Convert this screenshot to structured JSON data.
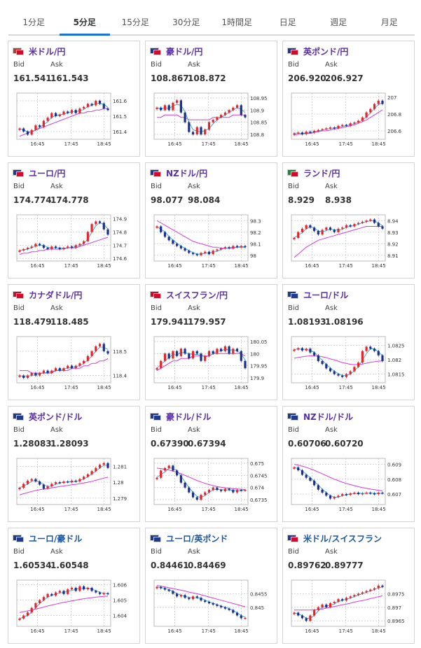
{
  "tabs": [
    {
      "label": "1分足",
      "active": false
    },
    {
      "label": "5分足",
      "active": true
    },
    {
      "label": "15分足",
      "active": false
    },
    {
      "label": "30分足",
      "active": false
    },
    {
      "label": "1時間足",
      "active": false
    },
    {
      "label": "日足",
      "active": false
    },
    {
      "label": "週足",
      "active": false
    },
    {
      "label": "月足",
      "active": false
    }
  ],
  "bid_label": "Bid",
  "ask_label": "Ask",
  "x_ticks": [
    "16:45",
    "17:45",
    "18:45"
  ],
  "colors": {
    "up": "#e8242b",
    "down": "#1b2f8f",
    "ma_short": "#2aa7d8",
    "ma_long": "#d83ad8",
    "accent": "#1a73d9"
  },
  "cards": [
    {
      "pair": "米ドル/円",
      "flags": [
        "#c0392b",
        "#d10b2a"
      ],
      "bid": "161.541",
      "ask": "161.543",
      "y_ticks": [
        "161.6",
        "161.5",
        "161.4"
      ],
      "ylim": [
        161.35,
        161.65
      ],
      "chart_data": {
        "type": "line",
        "close": [
          161.42,
          161.4,
          161.38,
          161.41,
          161.44,
          161.43,
          161.47,
          161.49,
          161.52,
          161.5,
          161.51,
          161.53,
          161.52,
          161.54,
          161.52,
          161.55,
          161.56,
          161.58,
          161.57,
          161.6,
          161.58,
          161.55,
          161.54
        ],
        "ma": [
          161.37,
          161.38,
          161.39,
          161.4,
          161.41,
          161.42,
          161.43,
          161.44,
          161.45,
          161.46,
          161.47,
          161.48,
          161.49,
          161.5,
          161.51,
          161.52,
          161.52,
          161.53,
          161.53,
          161.54,
          161.54,
          161.55,
          161.55
        ]
      }
    },
    {
      "pair": "豪ドル/円",
      "flags": [
        "#1f3a8a",
        "#d10b2a"
      ],
      "bid": "108.867",
      "ask": "108.872",
      "y_ticks": [
        "108.95",
        "108.9",
        "108.85",
        "108.8"
      ],
      "ylim": [
        108.78,
        108.97
      ],
      "chart_data": {
        "type": "line",
        "close": [
          108.91,
          108.9,
          108.92,
          108.9,
          108.93,
          108.94,
          108.89,
          108.85,
          108.81,
          108.8,
          108.83,
          108.8,
          108.82,
          108.85,
          108.86,
          108.87,
          108.88,
          108.89,
          108.9,
          108.91,
          108.92,
          108.88,
          108.87
        ],
        "ma": [
          108.87,
          108.87,
          108.88,
          108.88,
          108.88,
          108.88,
          108.87,
          108.87,
          108.86,
          108.86,
          108.86,
          108.86,
          108.86,
          108.86,
          108.87,
          108.87,
          108.87,
          108.87,
          108.87,
          108.88,
          108.88,
          108.88,
          108.88
        ]
      }
    },
    {
      "pair": "英ポンド/円",
      "flags": [
        "#1f3a8a",
        "#d10b2a"
      ],
      "bid": "206.920",
      "ask": "206.927",
      "y_ticks": [
        "207",
        "206.8",
        "206.6"
      ],
      "ylim": [
        206.5,
        207.05
      ],
      "chart_data": {
        "type": "line",
        "close": [
          206.57,
          206.58,
          206.56,
          206.59,
          206.58,
          206.6,
          206.61,
          206.62,
          206.63,
          206.64,
          206.63,
          206.66,
          206.67,
          206.66,
          206.69,
          206.7,
          206.72,
          206.76,
          206.82,
          206.86,
          206.92,
          206.96,
          206.92
        ],
        "ma": [
          206.55,
          206.56,
          206.56,
          206.57,
          206.57,
          206.58,
          206.59,
          206.6,
          206.6,
          206.61,
          206.62,
          206.63,
          206.64,
          206.65,
          206.66,
          206.67,
          206.69,
          206.71,
          206.73,
          206.76,
          206.79,
          206.82,
          206.85
        ]
      }
    },
    {
      "pair": "ユーロ/円",
      "flags": [
        "#1f3a8a",
        "#d10b2a"
      ],
      "bid": "174.774",
      "ask": "174.778",
      "y_ticks": [
        "174.9",
        "174.8",
        "174.7",
        "174.6"
      ],
      "ylim": [
        174.58,
        174.93
      ],
      "chart_data": {
        "type": "line",
        "close": [
          174.66,
          174.67,
          174.68,
          174.69,
          174.71,
          174.7,
          174.68,
          174.67,
          174.69,
          174.68,
          174.67,
          174.68,
          174.69,
          174.68,
          174.7,
          174.71,
          174.73,
          174.8,
          174.86,
          174.88,
          174.87,
          174.82,
          174.78
        ],
        "ma": [
          174.63,
          174.64,
          174.64,
          174.65,
          174.65,
          174.66,
          174.66,
          174.67,
          174.67,
          174.67,
          174.67,
          174.67,
          174.68,
          174.68,
          174.68,
          174.69,
          174.7,
          174.71,
          174.72,
          174.73,
          174.74,
          174.75,
          174.76
        ]
      }
    },
    {
      "pair": "NZドル/円",
      "flags": [
        "#1f3a8a",
        "#d10b2a"
      ],
      "bid": "98.077",
      "ask": "98.084",
      "y_ticks": [
        "98.3",
        "98.2",
        "98.1",
        "98"
      ],
      "ylim": [
        97.95,
        98.35
      ],
      "chart_data": {
        "type": "line",
        "close": [
          98.25,
          98.2,
          98.16,
          98.13,
          98.1,
          98.08,
          98.06,
          98.04,
          98.02,
          98.01,
          98.0,
          98.02,
          98.03,
          98.01,
          98.04,
          98.05,
          98.06,
          98.07,
          98.06,
          98.08,
          98.07,
          98.08,
          98.07
        ],
        "ma": [
          98.3,
          98.28,
          98.26,
          98.24,
          98.22,
          98.2,
          98.18,
          98.16,
          98.14,
          98.12,
          98.11,
          98.1,
          98.09,
          98.08,
          98.07,
          98.07,
          98.06,
          98.06,
          98.06,
          98.06,
          98.07,
          98.07,
          98.07
        ]
      }
    },
    {
      "pair": "ランド/円",
      "flags": [
        "#1a8a3a",
        "#d10b2a"
      ],
      "bid": "8.929",
      "ask": "8.938",
      "y_ticks": [
        "8.94",
        "8.93",
        "8.92",
        "8.91"
      ],
      "ylim": [
        8.905,
        8.945
      ],
      "chart_data": {
        "type": "line",
        "close": [
          8.925,
          8.93,
          8.933,
          8.936,
          8.934,
          8.931,
          8.928,
          8.932,
          8.934,
          8.932,
          8.93,
          8.933,
          8.934,
          8.936,
          8.935,
          8.937,
          8.938,
          8.939,
          8.94,
          8.941,
          8.938,
          8.935,
          8.933
        ],
        "ma": [
          8.908,
          8.911,
          8.914,
          8.917,
          8.919,
          8.921,
          8.923,
          8.924,
          8.925,
          8.926,
          8.927,
          8.928,
          8.929,
          8.93,
          8.931,
          8.932,
          8.933,
          8.934,
          8.935,
          8.935,
          8.935,
          8.935,
          8.935
        ]
      }
    },
    {
      "pair": "カナダドル/円",
      "flags": [
        "#d10b2a",
        "#d10b2a"
      ],
      "bid": "118.479",
      "ask": "118.485",
      "y_ticks": [
        "118.5",
        "118.4"
      ],
      "ylim": [
        118.37,
        118.56
      ],
      "chart_data": {
        "type": "line",
        "close": [
          118.4,
          118.39,
          118.4,
          118.41,
          118.4,
          118.41,
          118.42,
          118.41,
          118.42,
          118.43,
          118.42,
          118.43,
          118.44,
          118.43,
          118.44,
          118.45,
          118.46,
          118.48,
          118.5,
          118.52,
          118.53,
          118.5,
          118.49
        ],
        "ma": [
          118.42,
          118.42,
          118.42,
          118.41,
          118.41,
          118.41,
          118.41,
          118.41,
          118.41,
          118.42,
          118.42,
          118.42,
          118.42,
          118.43,
          118.43,
          118.43,
          118.44,
          118.44,
          118.45,
          118.45,
          118.46,
          118.46,
          118.47
        ]
      }
    },
    {
      "pair": "スイスフラン/円",
      "flags": [
        "#d10b2a",
        "#d10b2a"
      ],
      "bid": "179.941",
      "ask": "179.957",
      "y_ticks": [
        "180.05",
        "180",
        "179.95",
        "179.9"
      ],
      "ylim": [
        179.88,
        180.07
      ],
      "chart_data": {
        "type": "line",
        "close": [
          179.94,
          179.97,
          180.0,
          179.98,
          180.01,
          179.99,
          180.02,
          180.0,
          179.98,
          180.01,
          180.0,
          179.97,
          179.99,
          180.01,
          180.0,
          180.02,
          180.01,
          180.03,
          180.0,
          180.02,
          180.01,
          179.97,
          179.94
        ],
        "ma": [
          179.93,
          179.94,
          179.95,
          179.96,
          179.97,
          179.97,
          179.98,
          179.98,
          179.98,
          179.99,
          179.99,
          179.99,
          179.99,
          179.99,
          180.0,
          180.0,
          180.0,
          180.0,
          180.0,
          180.0,
          180.0,
          180.0,
          179.99
        ]
      }
    },
    {
      "pair": "ユーロ/ドル",
      "flags": [
        "#1f3a8a",
        "#1f3a8a"
      ],
      "bid": "1.08193",
      "ask": "1.08196",
      "y_ticks": [
        "1.0825",
        "1.082",
        "1.0815"
      ],
      "ylim": [
        1.0812,
        1.0828
      ],
      "chart_data": {
        "type": "line",
        "close": [
          1.08235,
          1.0824,
          1.08232,
          1.08238,
          1.08225,
          1.08215,
          1.08195,
          1.08185,
          1.0817,
          1.0816,
          1.0815,
          1.08145,
          1.0814,
          1.0815,
          1.0816,
          1.08175,
          1.0819,
          1.0823,
          1.08245,
          1.08238,
          1.0823,
          1.08215,
          1.08195
        ],
        "ma": [
          1.08205,
          1.08208,
          1.0821,
          1.08212,
          1.08213,
          1.08213,
          1.08212,
          1.0821,
          1.08207,
          1.08203,
          1.08199,
          1.08195,
          1.0819,
          1.08187,
          1.08184,
          1.08183,
          1.08183,
          1.08185,
          1.08188,
          1.08191,
          1.08193,
          1.08195,
          1.08196
        ]
      }
    },
    {
      "pair": "英ポンド/ドル",
      "flags": [
        "#1f3a8a",
        "#1f3a8a"
      ],
      "bid": "1.28083",
      "ask": "1.28093",
      "y_ticks": [
        "1.281",
        "1.28",
        "1.279"
      ],
      "ylim": [
        1.2786,
        1.2815
      ],
      "chart_data": {
        "type": "line",
        "close": [
          1.27965,
          1.2799,
          1.2801,
          1.2802,
          1.28005,
          1.27985,
          1.2796,
          1.27975,
          1.2799,
          1.28,
          1.27995,
          1.28005,
          1.28,
          1.2801,
          1.28005,
          1.2802,
          1.28035,
          1.2805,
          1.2807,
          1.2809,
          1.2811,
          1.2812,
          1.2809
        ],
        "ma": [
          1.2792,
          1.27928,
          1.27935,
          1.27942,
          1.27948,
          1.27953,
          1.27957,
          1.27961,
          1.27965,
          1.27969,
          1.27973,
          1.27977,
          1.2798,
          1.27984,
          1.27987,
          1.27991,
          1.27995,
          1.28,
          1.28006,
          1.28012,
          1.28019,
          1.28026,
          1.28032
        ]
      }
    },
    {
      "pair": "豪ドル/ドル",
      "flags": [
        "#1f3a8a",
        "#1f3a8a"
      ],
      "bid": "0.67390",
      "ask": "0.67394",
      "y_ticks": [
        "0.675",
        "0.6745",
        "0.674",
        "0.6735"
      ],
      "ylim": [
        0.6733,
        0.6752
      ],
      "chart_data": {
        "type": "line",
        "close": [
          0.6744,
          0.6747,
          0.6748,
          0.6749,
          0.6747,
          0.6745,
          0.6742,
          0.674,
          0.6738,
          0.6736,
          0.6735,
          0.6737,
          0.6738,
          0.6739,
          0.674,
          0.6739,
          0.67385,
          0.67395,
          0.6739,
          0.6738,
          0.6739,
          0.67388,
          0.6739
        ],
        "ma": [
          0.6748,
          0.67478,
          0.67475,
          0.67472,
          0.67468,
          0.67463,
          0.67457,
          0.6745,
          0.67443,
          0.67436,
          0.67429,
          0.67423,
          0.67417,
          0.67412,
          0.67408,
          0.67404,
          0.67401,
          0.67399,
          0.67397,
          0.67395,
          0.67394,
          0.67393,
          0.67392
        ]
      }
    },
    {
      "pair": "NZドル/ドル",
      "flags": [
        "#1f3a8a",
        "#1f3a8a"
      ],
      "bid": "0.60706",
      "ask": "0.60720",
      "y_ticks": [
        "0.609",
        "0.608",
        "0.607"
      ],
      "ylim": [
        0.6063,
        0.6094
      ],
      "chart_data": {
        "type": "line",
        "close": [
          0.6088,
          0.6086,
          0.6083,
          0.6081,
          0.6079,
          0.6076,
          0.6073,
          0.6071,
          0.6069,
          0.6067,
          0.6068,
          0.6069,
          0.607,
          0.60695,
          0.60705,
          0.6071,
          0.607,
          0.60705,
          0.6071,
          0.60705,
          0.607,
          0.6071,
          0.60706
        ],
        "ma": [
          0.609,
          0.60895,
          0.60888,
          0.6088,
          0.6087,
          0.6086,
          0.60848,
          0.60836,
          0.60824,
          0.60812,
          0.608,
          0.6079,
          0.6078,
          0.60772,
          0.60764,
          0.60757,
          0.6075,
          0.60744,
          0.60739,
          0.60734,
          0.6073,
          0.60726,
          0.60722
        ]
      }
    },
    {
      "pair": "ユーロ/豪ドル",
      "flags": [
        "#1f3a8a",
        "#1f3a8a"
      ],
      "blue": true,
      "bid": "1.60534",
      "ask": "1.60548",
      "y_ticks": [
        "1.606",
        "1.605",
        "1.604"
      ],
      "ylim": [
        1.6033,
        1.6063
      ],
      "chart_data": {
        "type": "line",
        "close": [
          1.6038,
          1.604,
          1.6042,
          1.6045,
          1.6048,
          1.605,
          1.6052,
          1.6054,
          1.6053,
          1.6055,
          1.6056,
          1.6054,
          1.6057,
          1.6058,
          1.6056,
          1.6059,
          1.6057,
          1.6058,
          1.6056,
          1.6055,
          1.6054,
          1.60545,
          1.6054
        ],
        "ma": [
          1.6042,
          1.60425,
          1.6043,
          1.60436,
          1.60442,
          1.60448,
          1.60455,
          1.60462,
          1.60468,
          1.60474,
          1.6048,
          1.60485,
          1.6049,
          1.60495,
          1.605,
          1.60505,
          1.60509,
          1.60513,
          1.60516,
          1.60519,
          1.60522,
          1.60524,
          1.60526
        ]
      }
    },
    {
      "pair": "ユーロ/英ポンド",
      "flags": [
        "#1f3a8a",
        "#1f3a8a"
      ],
      "blue": true,
      "bid": "0.84461",
      "ask": "0.84469",
      "y_ticks": [
        "0.8455",
        "0.845"
      ],
      "ylim": [
        0.8443,
        0.846
      ],
      "chart_data": {
        "type": "line",
        "close": [
          0.84575,
          0.8457,
          0.84565,
          0.8456,
          0.8455,
          0.8454,
          0.84545,
          0.84535,
          0.8453,
          0.8454,
          0.84535,
          0.84525,
          0.8452,
          0.84515,
          0.8451,
          0.84505,
          0.845,
          0.84495,
          0.8449,
          0.8448,
          0.8447,
          0.8446,
          0.84461
        ],
        "ma": [
          0.8458,
          0.84578,
          0.84575,
          0.84572,
          0.84569,
          0.84566,
          0.84563,
          0.8456,
          0.84556,
          0.84553,
          0.8455,
          0.84546,
          0.84542,
          0.84538,
          0.84534,
          0.8453,
          0.84526,
          0.84522,
          0.84518,
          0.84514,
          0.8451,
          0.84506,
          0.84502
        ]
      }
    },
    {
      "pair": "米ドル/スイスフラン",
      "flags": [
        "#1f3a8a",
        "#d10b2a"
      ],
      "blue": true,
      "bid": "0.89762",
      "ask": "0.89777",
      "y_ticks": [
        "0.8975",
        "0.897",
        "0.8965"
      ],
      "ylim": [
        0.8963,
        0.898
      ],
      "chart_data": {
        "type": "line",
        "close": [
          0.8968,
          0.8967,
          0.8966,
          0.8965,
          0.8967,
          0.8969,
          0.897,
          0.8971,
          0.897,
          0.89715,
          0.8972,
          0.8973,
          0.89725,
          0.89735,
          0.8974,
          0.89745,
          0.8975,
          0.89755,
          0.8976,
          0.89765,
          0.8977,
          0.8978,
          0.89775
        ],
        "ma": [
          0.8969,
          0.8969,
          0.8969,
          0.8969,
          0.8969,
          0.8969,
          0.89692,
          0.89694,
          0.89697,
          0.897,
          0.89703,
          0.89706,
          0.89709,
          0.89712,
          0.89715,
          0.89719,
          0.89722,
          0.89725,
          0.89728,
          0.89732,
          0.89735,
          0.89739,
          0.89742
        ]
      }
    }
  ]
}
